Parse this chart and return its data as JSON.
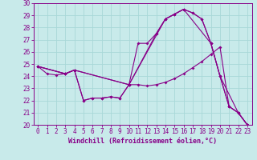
{
  "xlabel": "Windchill (Refroidissement éolien,°C)",
  "bg_color": "#c8eaea",
  "grid_color": "#a8d8d8",
  "line_color": "#880088",
  "xlim": [
    -0.5,
    23.5
  ],
  "ylim": [
    20,
    30
  ],
  "xticks": [
    0,
    1,
    2,
    3,
    4,
    5,
    6,
    7,
    8,
    9,
    10,
    11,
    12,
    13,
    14,
    15,
    16,
    17,
    18,
    19,
    20,
    21,
    22,
    23
  ],
  "yticks": [
    20,
    21,
    22,
    23,
    24,
    25,
    26,
    27,
    28,
    29,
    30
  ],
  "lines": [
    {
      "x": [
        0,
        1,
        2,
        3,
        4,
        5,
        6,
        7,
        8,
        9,
        10,
        11,
        12,
        13,
        14,
        15,
        16,
        17,
        18,
        19,
        20,
        21,
        22,
        23
      ],
      "y": [
        24.8,
        24.2,
        24.1,
        24.2,
        24.5,
        22.0,
        22.2,
        22.2,
        22.3,
        22.2,
        23.3,
        26.7,
        26.7,
        27.5,
        28.7,
        29.1,
        29.5,
        29.2,
        28.7,
        26.7,
        24.0,
        21.5,
        21.0,
        20.0
      ]
    },
    {
      "x": [
        0,
        3,
        4,
        10,
        13,
        14,
        15,
        16,
        17,
        18,
        19,
        20,
        21,
        22,
        23
      ],
      "y": [
        24.8,
        24.2,
        24.5,
        23.3,
        27.5,
        28.7,
        29.1,
        29.5,
        29.2,
        28.7,
        26.7,
        24.0,
        21.5,
        21.0,
        20.0
      ]
    },
    {
      "x": [
        0,
        3,
        4,
        10,
        14,
        15,
        16,
        19,
        20,
        22,
        23
      ],
      "y": [
        24.8,
        24.2,
        24.5,
        23.3,
        28.7,
        29.1,
        29.5,
        26.7,
        24.0,
        21.0,
        20.0
      ]
    },
    {
      "x": [
        0,
        3,
        4,
        5,
        6,
        7,
        8,
        9,
        10,
        11,
        12,
        13,
        14,
        15,
        16,
        17,
        18,
        19,
        20,
        21,
        22,
        23
      ],
      "y": [
        24.8,
        24.2,
        24.5,
        22.0,
        22.2,
        22.2,
        22.3,
        22.2,
        23.3,
        23.3,
        23.2,
        23.3,
        23.5,
        23.8,
        24.2,
        24.7,
        25.2,
        25.8,
        26.4,
        21.5,
        21.0,
        20.0
      ]
    }
  ]
}
